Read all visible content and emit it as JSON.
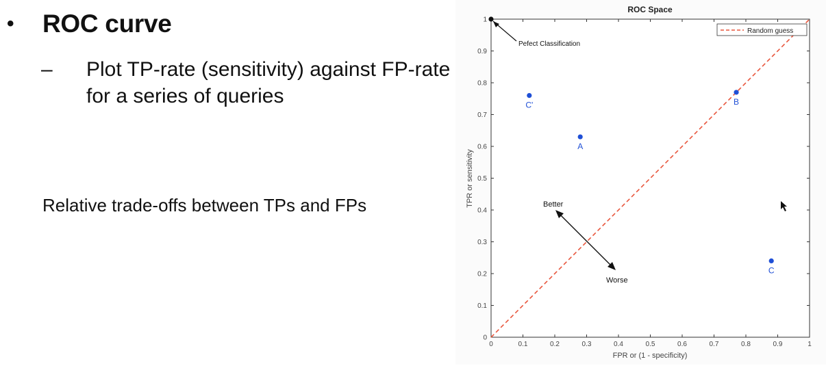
{
  "slide": {
    "bullet_symbol": "•",
    "title": "ROC curve",
    "sub_dash": "–",
    "sub_text": "Plot TP-rate (sensitivity) against FP-rate for a series of queries",
    "note": "Relative trade-offs between TPs and FPs"
  },
  "chart_data": {
    "type": "scatter",
    "title": "ROC Space",
    "xlabel": "FPR or (1 - specificity)",
    "ylabel": "TPR or sensitivity",
    "xlim": [
      0,
      1
    ],
    "ylim": [
      0,
      1
    ],
    "xticks": [
      "0",
      "0.1",
      "0.2",
      "0.3",
      "0.4",
      "0.5",
      "0.6",
      "0.7",
      "0.8",
      "0.9",
      "1"
    ],
    "yticks": [
      "0",
      "0.1",
      "0.2",
      "0.3",
      "0.4",
      "0.5",
      "0.6",
      "0.7",
      "0.8",
      "0.9",
      "1"
    ],
    "grid": false,
    "legend": {
      "placement": "top-right",
      "entries": [
        "Random guess"
      ]
    },
    "series": [
      {
        "name": "Random guess",
        "kind": "line",
        "style": "dashed",
        "color": "#e8553c",
        "x": [
          0,
          1
        ],
        "y": [
          0,
          1
        ]
      }
    ],
    "points": [
      {
        "label": "C'",
        "x": 0.12,
        "y": 0.76,
        "color": "#1f4fd6"
      },
      {
        "label": "A",
        "x": 0.28,
        "y": 0.63,
        "color": "#1f4fd6"
      },
      {
        "label": "B",
        "x": 0.77,
        "y": 0.77,
        "color": "#1f4fd6"
      },
      {
        "label": "C",
        "x": 0.88,
        "y": 0.24,
        "color": "#1f4fd6"
      },
      {
        "label": "",
        "x": 0,
        "y": 1,
        "color": "#111111"
      }
    ],
    "annotations": [
      {
        "text": "Pefect Classification"
      },
      {
        "text": "Better"
      },
      {
        "text": "Worse"
      }
    ]
  }
}
